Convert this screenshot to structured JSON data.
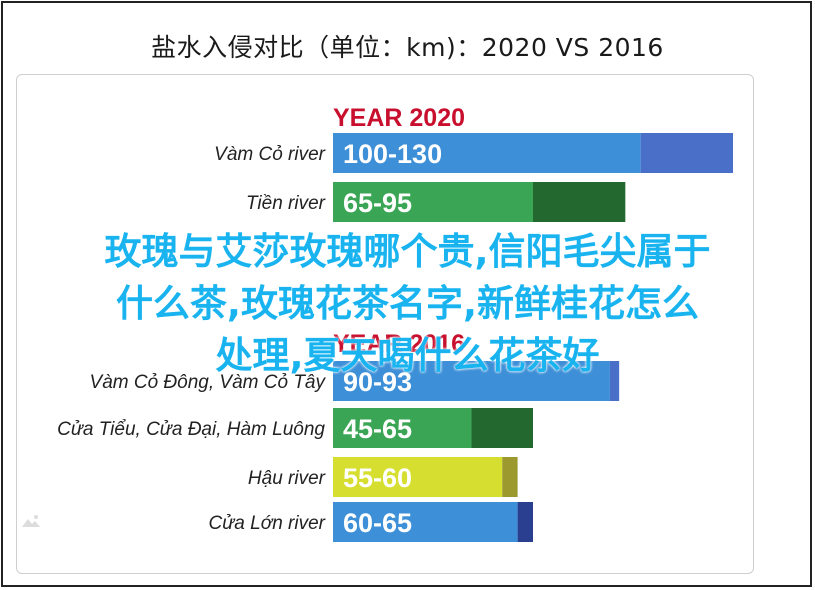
{
  "title": "盐水入侵对比（单位：km)：2020 VS 2016",
  "overlay_lines": [
    "玫瑰与艾莎玫瑰哪个贵,信阳毛尖属于",
    "什么茶,玫瑰花茶名字,新鲜桂花怎么",
    "处理,夏天喝什么花茶好"
  ],
  "colors": {
    "blue": "#3d8fd8",
    "blue_dark": "#4a6fc8",
    "green": "#3aa655",
    "green_dark": "#23692f",
    "yellow": "#d6de2f",
    "yellow_dark": "#9c9a2e",
    "navy": "#2a3f8f",
    "year_red": "#c8102e"
  },
  "chart_data": [
    {
      "type": "bar",
      "orientation": "horizontal",
      "title": "YEAR 2020",
      "categories": [
        "Vàm Cỏ river",
        "Tiền river"
      ],
      "ranges": [
        [
          100,
          130
        ],
        [
          65,
          95
        ]
      ],
      "labels": [
        "100-130",
        "65-95"
      ],
      "series_colors": [
        "blue",
        "green"
      ]
    },
    {
      "type": "bar",
      "orientation": "horizontal",
      "title": "YEAR 2016",
      "categories": [
        "Vàm Cỏ Đông, Vàm Cỏ Tây",
        "Cửa Tiểu, Cửa Đại, Hàm Luông",
        "Hậu river",
        "Cửa Lớn river"
      ],
      "ranges": [
        [
          90,
          93
        ],
        [
          45,
          65
        ],
        [
          55,
          60
        ],
        [
          60,
          65
        ]
      ],
      "labels": [
        "90-93",
        "45-65",
        "55-60",
        "60-65"
      ],
      "series_colors": [
        "blue",
        "green",
        "yellow",
        "blue"
      ]
    }
  ]
}
